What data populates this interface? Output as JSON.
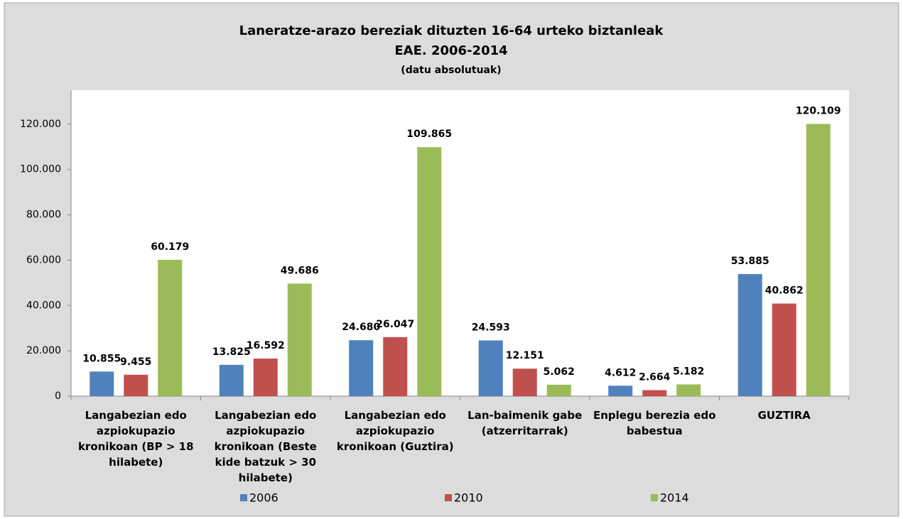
{
  "chart_data": {
    "type": "bar",
    "title": "Laneratze-arazo bereziak dituzten 16-64 urteko biztanleak",
    "subtitle": "EAE. 2006-2014",
    "note": "(datu absolutuak)",
    "categories": [
      "Langabezian edo azpiokupazio kronikoan (BP > 18 hilabete)",
      "Langabezian edo azpiokupazio kronikoan (Beste kide batzuk > 30 hilabete)",
      "Langabezian edo azpiokupazio kronikoan (Guztira)",
      "Lan-baimenik gabe (atzerritarrak)",
      "Enplegu berezia edo babestua",
      "GUZTIRA"
    ],
    "series": [
      {
        "name": "2006",
        "color": "#4f81bd",
        "values": [
          10855,
          13825,
          24680,
          24593,
          4612,
          53885
        ],
        "value_labels": [
          "10.855",
          "13.825",
          "24.680",
          "24.593",
          "4.612",
          "53.885"
        ]
      },
      {
        "name": "2010",
        "color": "#c0504d",
        "values": [
          9455,
          16592,
          26047,
          12151,
          2664,
          40862
        ],
        "value_labels": [
          "9.455",
          "16.592",
          "26.047",
          "12.151",
          "2.664",
          "40.862"
        ]
      },
      {
        "name": "2014",
        "color": "#9bbb59",
        "values": [
          60179,
          49686,
          109865,
          5062,
          5182,
          120109
        ],
        "value_labels": [
          "60.179",
          "49.686",
          "109.865",
          "5.062",
          "5.182",
          "120.109"
        ]
      }
    ],
    "ylim": [
      0,
      135000
    ],
    "yticks": [
      0,
      {
        "value": 20000,
        "label": "20.000"
      },
      {
        "value": 40000,
        "label": "40.000"
      },
      {
        "value": 60000,
        "label": "60.000"
      },
      {
        "value": 80000,
        "label": "80.000"
      },
      {
        "value": 100000,
        "label": "100.000"
      },
      {
        "value": 120000,
        "label": "120.000"
      }
    ],
    "legend": "bottom"
  }
}
